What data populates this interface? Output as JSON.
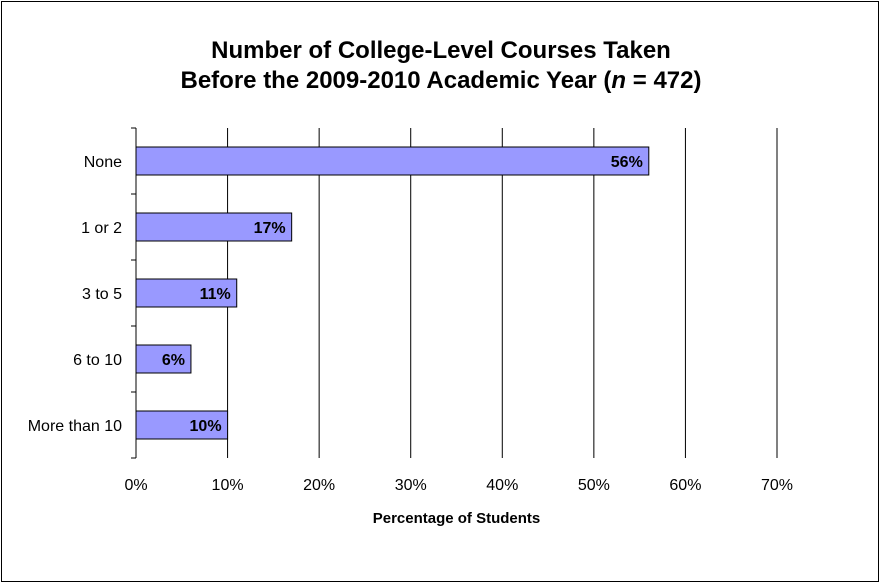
{
  "chart_data": {
    "type": "bar",
    "orientation": "horizontal",
    "title_line1": "Number of College-Level Courses Taken",
    "title_line2_prefix": "Before the 2009-2010 Academic Year (",
    "title_line2_n": "n",
    "title_line2_suffix": " = 472)",
    "categories": [
      "None",
      "1 or 2",
      "3 to 5",
      "6 to 10",
      "More than 10"
    ],
    "values": [
      56,
      17,
      11,
      6,
      10
    ],
    "value_labels": [
      "56%",
      "17%",
      "11%",
      "6%",
      "10%"
    ],
    "xlabel": "Percentage of Students",
    "ylabel": "",
    "xlim": [
      0,
      70
    ],
    "x_ticks": [
      0,
      10,
      20,
      30,
      40,
      50,
      60,
      70
    ],
    "x_tick_labels": [
      "0%",
      "10%",
      "20%",
      "30%",
      "40%",
      "50%",
      "60%",
      "70%"
    ],
    "grid": "vertical",
    "legend": "none",
    "bar_color": "#9999ff",
    "bar_edge_color": "#000000"
  }
}
